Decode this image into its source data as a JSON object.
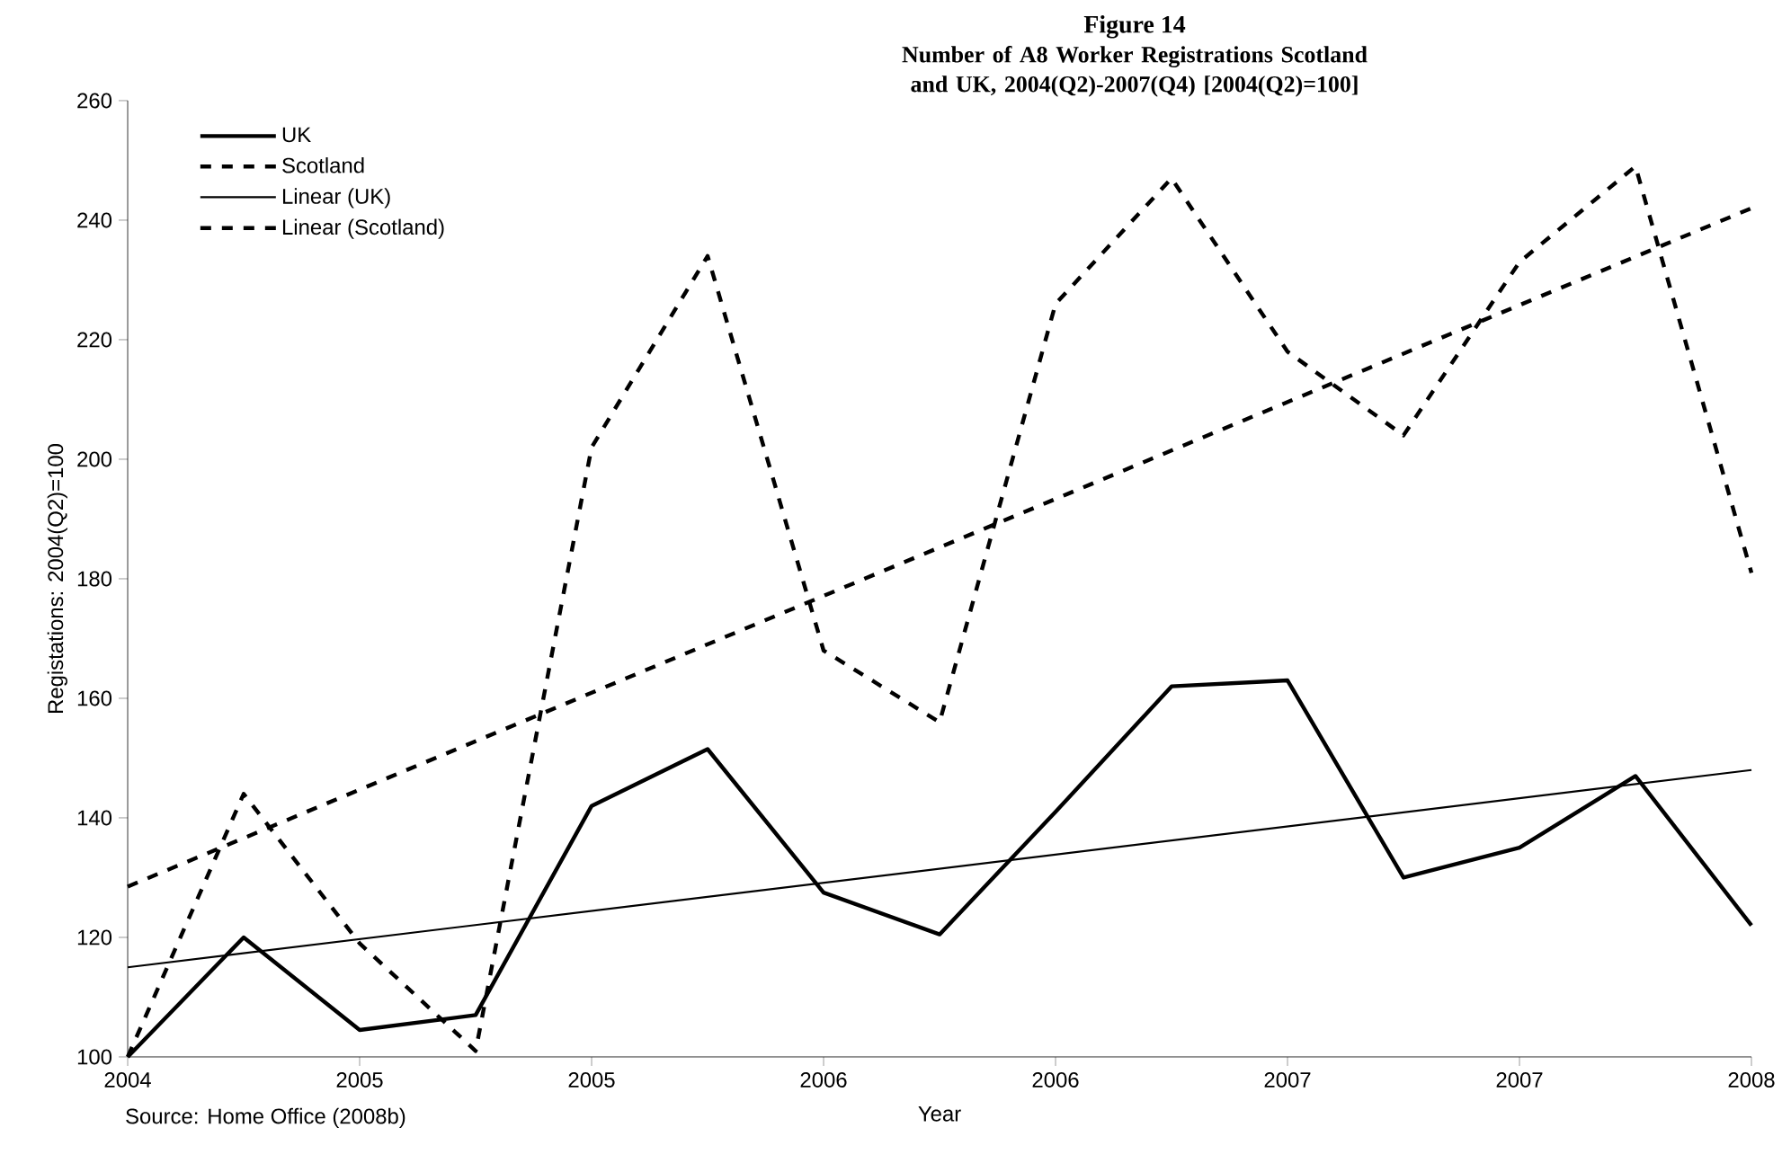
{
  "chart_data": {
    "type": "line",
    "title": "Figure 14",
    "subtitle": "Number of A8 Worker Registrations Scotland and UK, 2004(Q2)-2007(Q4) [2004(Q2)=100]",
    "xlabel": "Year",
    "ylabel": "Registations: 2004(Q2)=100",
    "categories": [
      "2004",
      null,
      "2005",
      null,
      "2005",
      null,
      "2006",
      null,
      "2006",
      null,
      "2007",
      null,
      "2007",
      null,
      "2008"
    ],
    "series": [
      {
        "name": "UK",
        "color": "#000000",
        "line_style": "solid",
        "values": [
          100,
          120,
          104.5,
          107,
          142,
          151.5,
          127.5,
          120.5,
          141,
          162,
          163,
          130,
          135,
          147,
          122
        ]
      },
      {
        "name": "Scotland",
        "color": "#000000",
        "line_style": "dashed",
        "values": [
          100,
          144,
          119,
          101,
          202,
          234,
          168,
          156,
          226,
          247,
          218,
          204,
          233,
          249,
          181
        ]
      },
      {
        "name": "Linear (UK)",
        "color": "#000000",
        "line_style": "solid",
        "values": [
          115,
          null,
          null,
          null,
          null,
          null,
          null,
          null,
          null,
          null,
          null,
          null,
          null,
          null,
          148
        ]
      },
      {
        "name": "Linear (Scotland)",
        "color": "#000000",
        "line_style": "dashed",
        "values": [
          128.5,
          null,
          null,
          null,
          null,
          null,
          null,
          null,
          null,
          null,
          null,
          null,
          null,
          null,
          242
        ]
      }
    ],
    "ylim": [
      100,
      260
    ],
    "yticks": [
      100,
      120,
      140,
      160,
      180,
      200,
      220,
      240,
      260
    ],
    "grid": false,
    "legend": "top left",
    "marker": "none",
    "annotations": [
      "Source: Home Office (2008b)"
    ]
  }
}
